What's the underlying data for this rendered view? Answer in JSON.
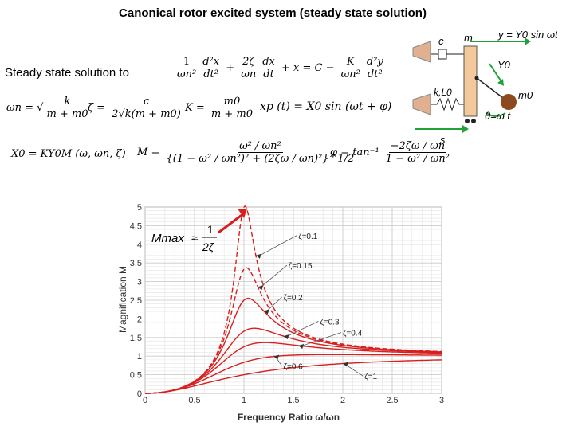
{
  "title": "Canonical rotor excited system (steady state solution)",
  "subtitle": "Steady state solution to",
  "equations": {
    "eom_lhs_1": "1",
    "eom_lhs_1_den": "ωn²",
    "eom_lhs_1_num": "d²x",
    "eom_lhs_1_den2": "dt²",
    "eom_lhs_2_num": "2ζ",
    "eom_lhs_2_den": "ωn",
    "eom_lhs_2b_num": "dx",
    "eom_lhs_2b_den": "dt",
    "eom_rhs": "+ x = C −",
    "eom_rhs_K_num": "K",
    "eom_rhs_K_den": "ωn²",
    "eom_rhs_y_num": "d²y",
    "eom_rhs_y_den": "dt²",
    "omega_n_lhs": "ωn =",
    "omega_n_num": "k",
    "omega_n_den": "m + m0",
    "zeta_lhs": "ζ =",
    "zeta_num": "c",
    "zeta_den": "2√k(m + m0)",
    "K_lhs": "K =",
    "K_num": "m0",
    "K_den": "m + m0",
    "xp": "xp (t) = X0 sin (ωt + φ)",
    "X0": "X0 = KY0M (ω, ωn, ζ)",
    "M_lhs": "M =",
    "M_num": "ω² / ωn²",
    "M_den": "{(1 − ω² / ωn²)² + (2ζω / ωn)²}^1/2",
    "phi_lhs": "φ = tan⁻¹",
    "phi_num": "−2ζω / ωn",
    "phi_den": "1 − ω² / ωn²"
  },
  "diagram": {
    "y_label": "y = Y0 sin ωt",
    "c_label": "c",
    "m_label": "m",
    "Y0_label": "Y0",
    "kL0_label": "k,L0",
    "m0_label": "m0",
    "theta_label": "θ=ω t",
    "s_label": "s"
  },
  "colors": {
    "curve": "#d81e1e",
    "arrow_green": "#1fa23a",
    "wall": "#e0b090",
    "mass": "#f3c89a",
    "ball": "#8b4a1f"
  },
  "annotation": {
    "mmax_lhs": "Mmax",
    "mmax_num": "1",
    "mmax_den": "2ζ"
  },
  "chart_data": {
    "type": "line",
    "xlabel": "Frequency Ratio ω/ωn",
    "ylabel": "Magnification M",
    "xlim": [
      0,
      3
    ],
    "ylim": [
      0,
      5
    ],
    "grid": true,
    "xticks": [
      "0",
      "0.5",
      "1",
      "1.5",
      "2",
      "2.5",
      "3"
    ],
    "yticks": [
      "0",
      "0.5",
      "1",
      "1.5",
      "2",
      "2.5",
      "3",
      "3.5",
      "4",
      "4.5",
      "5"
    ],
    "series": [
      {
        "name": "ζ=0.1",
        "zeta": 0.1
      },
      {
        "name": "ζ=0.15",
        "zeta": 0.15
      },
      {
        "name": "ζ=0.2",
        "zeta": 0.2
      },
      {
        "name": "ζ=0.3",
        "zeta": 0.3
      },
      {
        "name": "ζ=0.4",
        "zeta": 0.4
      },
      {
        "name": "ζ=0.6",
        "zeta": 0.6
      },
      {
        "name": "ζ=1",
        "zeta": 1.0
      }
    ]
  }
}
